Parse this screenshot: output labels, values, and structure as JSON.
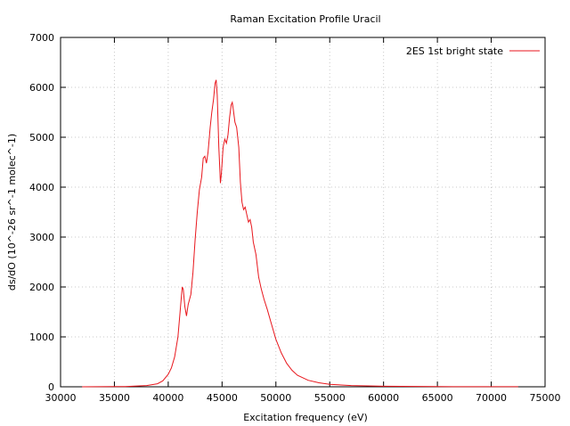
{
  "chart_data": {
    "type": "line",
    "title": "Raman Excitation Profile Uracil",
    "xlabel": "Excitation frequency (eV)",
    "ylabel": "ds/dO (10^-26 sr^-1 molec^-1)",
    "xlim": [
      30000,
      75000
    ],
    "ylim": [
      0,
      7000
    ],
    "xticks": [
      30000,
      35000,
      40000,
      45000,
      50000,
      55000,
      60000,
      65000,
      70000,
      75000
    ],
    "yticks": [
      0,
      1000,
      2000,
      3000,
      4000,
      5000,
      6000,
      7000
    ],
    "grid": true,
    "legend_position": "top-right",
    "series": [
      {
        "name": "2ES 1st bright state",
        "color": "#e8161c",
        "points": [
          [
            32000,
            0
          ],
          [
            36000,
            5
          ],
          [
            38000,
            25
          ],
          [
            39000,
            60
          ],
          [
            39500,
            120
          ],
          [
            40000,
            250
          ],
          [
            40300,
            380
          ],
          [
            40600,
            600
          ],
          [
            40900,
            1000
          ],
          [
            41100,
            1500
          ],
          [
            41300,
            2000
          ],
          [
            41400,
            1950
          ],
          [
            41550,
            1600
          ],
          [
            41700,
            1420
          ],
          [
            41850,
            1650
          ],
          [
            42100,
            1850
          ],
          [
            42300,
            2300
          ],
          [
            42500,
            2950
          ],
          [
            42700,
            3500
          ],
          [
            42900,
            3950
          ],
          [
            43100,
            4200
          ],
          [
            43250,
            4580
          ],
          [
            43400,
            4620
          ],
          [
            43550,
            4480
          ],
          [
            43700,
            4700
          ],
          [
            43900,
            5200
          ],
          [
            44050,
            5500
          ],
          [
            44200,
            5750
          ],
          [
            44350,
            6080
          ],
          [
            44450,
            6150
          ],
          [
            44550,
            5850
          ],
          [
            44700,
            4800
          ],
          [
            44850,
            4080
          ],
          [
            44950,
            4300
          ],
          [
            45100,
            4800
          ],
          [
            45250,
            4960
          ],
          [
            45400,
            4880
          ],
          [
            45550,
            5050
          ],
          [
            45700,
            5400
          ],
          [
            45850,
            5650
          ],
          [
            45950,
            5700
          ],
          [
            46050,
            5550
          ],
          [
            46200,
            5300
          ],
          [
            46350,
            5200
          ],
          [
            46550,
            4800
          ],
          [
            46700,
            4100
          ],
          [
            46850,
            3700
          ],
          [
            47000,
            3550
          ],
          [
            47150,
            3600
          ],
          [
            47300,
            3450
          ],
          [
            47450,
            3300
          ],
          [
            47600,
            3350
          ],
          [
            47750,
            3200
          ],
          [
            47900,
            2900
          ],
          [
            48150,
            2650
          ],
          [
            48400,
            2200
          ],
          [
            48650,
            1950
          ],
          [
            48900,
            1750
          ],
          [
            49200,
            1550
          ],
          [
            49600,
            1250
          ],
          [
            50000,
            950
          ],
          [
            50500,
            680
          ],
          [
            51000,
            470
          ],
          [
            51500,
            330
          ],
          [
            52000,
            230
          ],
          [
            53000,
            130
          ],
          [
            54000,
            80
          ],
          [
            55000,
            50
          ],
          [
            57000,
            25
          ],
          [
            60000,
            10
          ],
          [
            65000,
            4
          ],
          [
            72500,
            1
          ]
        ]
      }
    ]
  }
}
